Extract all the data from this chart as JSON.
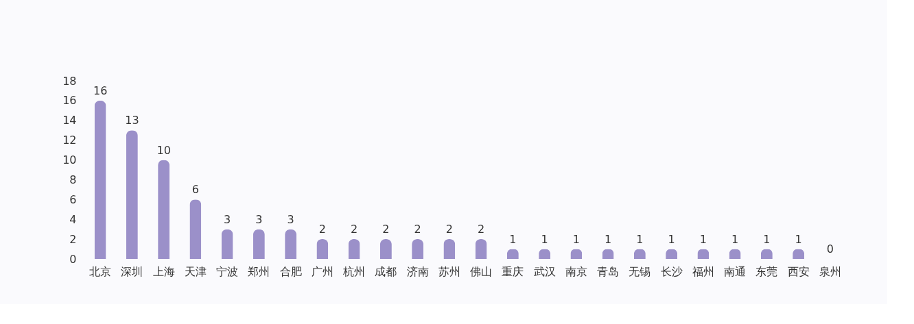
{
  "chart_data": {
    "type": "bar",
    "categories": [
      "北京",
      "深圳",
      "上海",
      "天津",
      "宁波",
      "郑州",
      "合肥",
      "广州",
      "杭州",
      "成都",
      "济南",
      "苏州",
      "佛山",
      "重庆",
      "武汉",
      "南京",
      "青岛",
      "无锡",
      "长沙",
      "福州",
      "南通",
      "东莞",
      "西安",
      "泉州"
    ],
    "values": [
      16,
      13,
      10,
      6,
      3,
      3,
      3,
      2,
      2,
      2,
      2,
      2,
      2,
      1,
      1,
      1,
      1,
      1,
      1,
      1,
      1,
      1,
      1,
      0
    ],
    "color": "#9b90c9",
    "ylim": [
      0,
      18
    ],
    "yticks": [
      0,
      2,
      4,
      6,
      8,
      10,
      12,
      14,
      16,
      18
    ],
    "data_labels": true,
    "grid": false
  }
}
